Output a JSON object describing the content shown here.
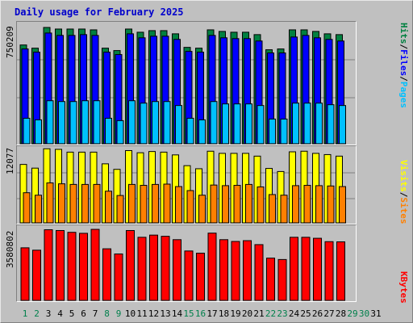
{
  "title": "Daily usage for February 2025",
  "colors": {
    "hits": "#008040",
    "files": "#0000ff",
    "pages": "#00c0ff",
    "sites": "#ff8000",
    "visits": "#ffff00",
    "kbytes": "#ff0000",
    "weekday": "#000000",
    "weekend": "#00804c"
  },
  "chart_data": [
    {
      "type": "bar",
      "panel": "hits-files-pages",
      "ymax_label": "750209",
      "right_label": [
        "Pages",
        "Files",
        "Hits"
      ],
      "x": [
        1,
        2,
        3,
        4,
        5,
        6,
        7,
        8,
        9,
        10,
        11,
        12,
        13,
        14,
        15,
        16,
        17,
        18,
        19,
        20,
        21,
        22,
        23,
        24,
        25,
        26,
        27,
        28,
        29,
        30,
        31
      ],
      "series": [
        {
          "name": "Hits",
          "values": [
            620000,
            600000,
            730000,
            720000,
            720000,
            720000,
            715000,
            600000,
            585000,
            720000,
            700000,
            710000,
            710000,
            690000,
            605000,
            600000,
            715000,
            705000,
            700000,
            700000,
            685000,
            590000,
            595000,
            715000,
            715000,
            705000,
            690000,
            685000,
            0,
            0,
            0
          ]
        },
        {
          "name": "Files",
          "values": [
            595000,
            575000,
            695000,
            680000,
            680000,
            685000,
            680000,
            575000,
            560000,
            690000,
            665000,
            675000,
            675000,
            655000,
            580000,
            575000,
            680000,
            665000,
            660000,
            660000,
            645000,
            570000,
            570000,
            670000,
            680000,
            665000,
            655000,
            645000,
            0,
            0,
            0
          ]
        },
        {
          "name": "Pages",
          "values": [
            160000,
            150000,
            270000,
            265000,
            265000,
            270000,
            270000,
            160000,
            145000,
            270000,
            255000,
            265000,
            265000,
            240000,
            160000,
            150000,
            265000,
            250000,
            250000,
            250000,
            240000,
            155000,
            155000,
            255000,
            255000,
            255000,
            245000,
            240000,
            0,
            0,
            0
          ]
        }
      ]
    },
    {
      "type": "bar",
      "panel": "visits-sites",
      "ymax_label": "12077",
      "right_label": [
        "Sites",
        "Visits"
      ],
      "x": [
        1,
        2,
        3,
        4,
        5,
        6,
        7,
        8,
        9,
        10,
        11,
        12,
        13,
        14,
        15,
        16,
        17,
        18,
        19,
        20,
        21,
        22,
        23,
        24,
        25,
        26,
        27,
        28,
        29,
        30,
        31
      ],
      "series": [
        {
          "name": "Visits",
          "values": [
            9500,
            8900,
            12050,
            11950,
            11500,
            11500,
            11500,
            9600,
            8700,
            11750,
            11400,
            11600,
            11500,
            11050,
            9300,
            8800,
            11650,
            11300,
            11300,
            11300,
            10850,
            8850,
            8350,
            11550,
            11650,
            11300,
            11100,
            10850,
            0,
            0,
            0
          ]
        },
        {
          "name": "Sites",
          "values": [
            4900,
            4500,
            6500,
            6350,
            6250,
            6250,
            6250,
            5150,
            4450,
            6250,
            6100,
            6250,
            6300,
            5900,
            5250,
            4500,
            6150,
            6050,
            6100,
            6250,
            5850,
            4600,
            4500,
            6050,
            6100,
            6050,
            6000,
            5900,
            0,
            0,
            0
          ]
        }
      ]
    },
    {
      "type": "bar",
      "panel": "kbytes",
      "ymax_label": "3580802",
      "right_label": [
        "KBytes"
      ],
      "x": [
        1,
        2,
        3,
        4,
        5,
        6,
        7,
        8,
        9,
        10,
        11,
        12,
        13,
        14,
        15,
        16,
        17,
        18,
        19,
        20,
        21,
        22,
        23,
        24,
        25,
        26,
        27,
        28,
        29,
        30,
        31
      ],
      "series": [
        {
          "name": "KBytes",
          "values": [
            2650000,
            2530000,
            3560000,
            3520000,
            3430000,
            3380000,
            3580000,
            2600000,
            2340000,
            3520000,
            3180000,
            3290000,
            3230000,
            3060000,
            2490000,
            2380000,
            3390000,
            3060000,
            2970000,
            3010000,
            2810000,
            2130000,
            2060000,
            3180000,
            3180000,
            3130000,
            2960000,
            2950000,
            0,
            0,
            0
          ]
        }
      ]
    }
  ],
  "x_labels": [
    "1",
    "2",
    "3",
    "4",
    "5",
    "6",
    "7",
    "8",
    "9",
    "10",
    "11",
    "12",
    "13",
    "14",
    "15",
    "16",
    "17",
    "18",
    "19",
    "20",
    "21",
    "22",
    "23",
    "24",
    "25",
    "26",
    "27",
    "28",
    "29",
    "30",
    "31"
  ],
  "weekend_days": [
    1,
    2,
    8,
    9,
    15,
    16,
    22,
    23,
    29,
    30
  ]
}
